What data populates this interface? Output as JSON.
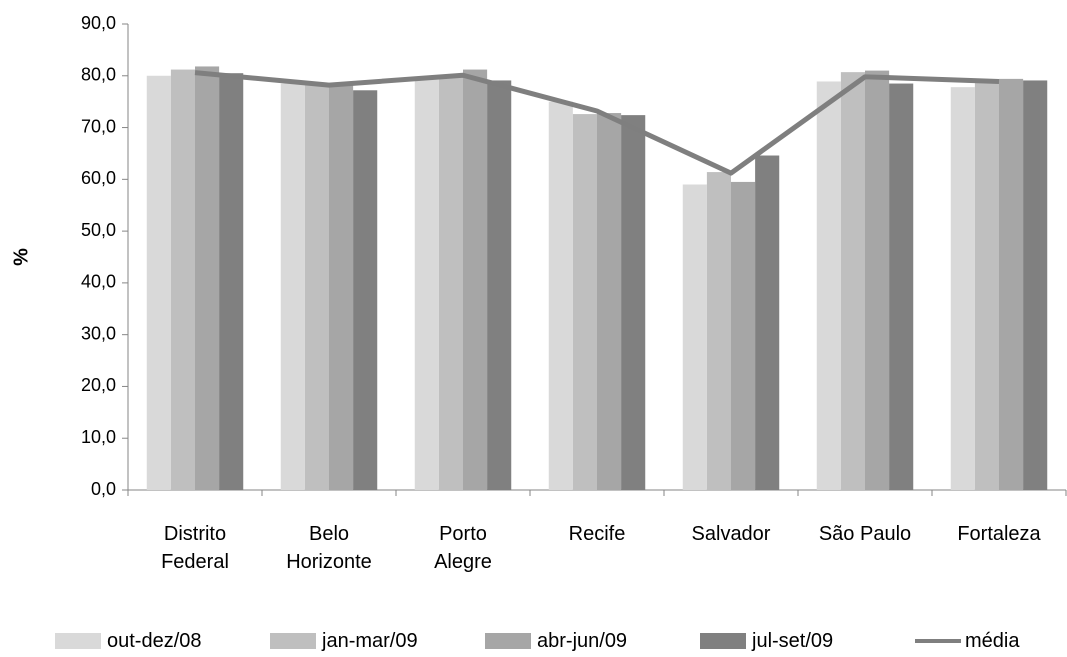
{
  "chart_data": {
    "type": "bar",
    "ylabel": "%",
    "categories": [
      "Distrito\nFederal",
      "Belo\nHorizonte",
      "Porto\nAlegre",
      "Recife",
      "Salvador",
      "São Paulo",
      "Fortaleza"
    ],
    "series": [
      {
        "name": "out-dez/08",
        "color": "#d9d9d9",
        "values": [
          80.0,
          78.5,
          79.5,
          75.0,
          59.0,
          78.9,
          77.8
        ]
      },
      {
        "name": "jan-mar/09",
        "color": "#bfbfbf",
        "values": [
          81.2,
          78.3,
          80.0,
          72.6,
          61.4,
          80.7,
          79.0
        ]
      },
      {
        "name": "abr-jun/09",
        "color": "#a6a6a6",
        "values": [
          81.8,
          78.5,
          81.2,
          72.8,
          59.5,
          81.0,
          79.4
        ]
      },
      {
        "name": "jul-set/09",
        "color": "#808080",
        "values": [
          80.5,
          77.2,
          79.1,
          72.4,
          64.6,
          78.5,
          79.1
        ]
      },
      {
        "name": "média",
        "color": "#7f7f7f",
        "type": "line",
        "values": [
          80.6,
          78.2,
          80.1,
          73.2,
          61.2,
          79.8,
          78.9
        ]
      }
    ],
    "ylim": [
      0,
      90
    ],
    "yticks": [
      {
        "value": 0,
        "label": "0,0"
      },
      {
        "value": 10,
        "label": "10,0"
      },
      {
        "value": 20,
        "label": "20,0"
      },
      {
        "value": 30,
        "label": "30,0"
      },
      {
        "value": 40,
        "label": "40,0"
      },
      {
        "value": 50,
        "label": "50,0"
      },
      {
        "value": 60,
        "label": "60,0"
      },
      {
        "value": 70,
        "label": "70,0"
      },
      {
        "value": 80,
        "label": "80,0"
      },
      {
        "value": 90,
        "label": "90,0"
      }
    ],
    "grid": false
  }
}
